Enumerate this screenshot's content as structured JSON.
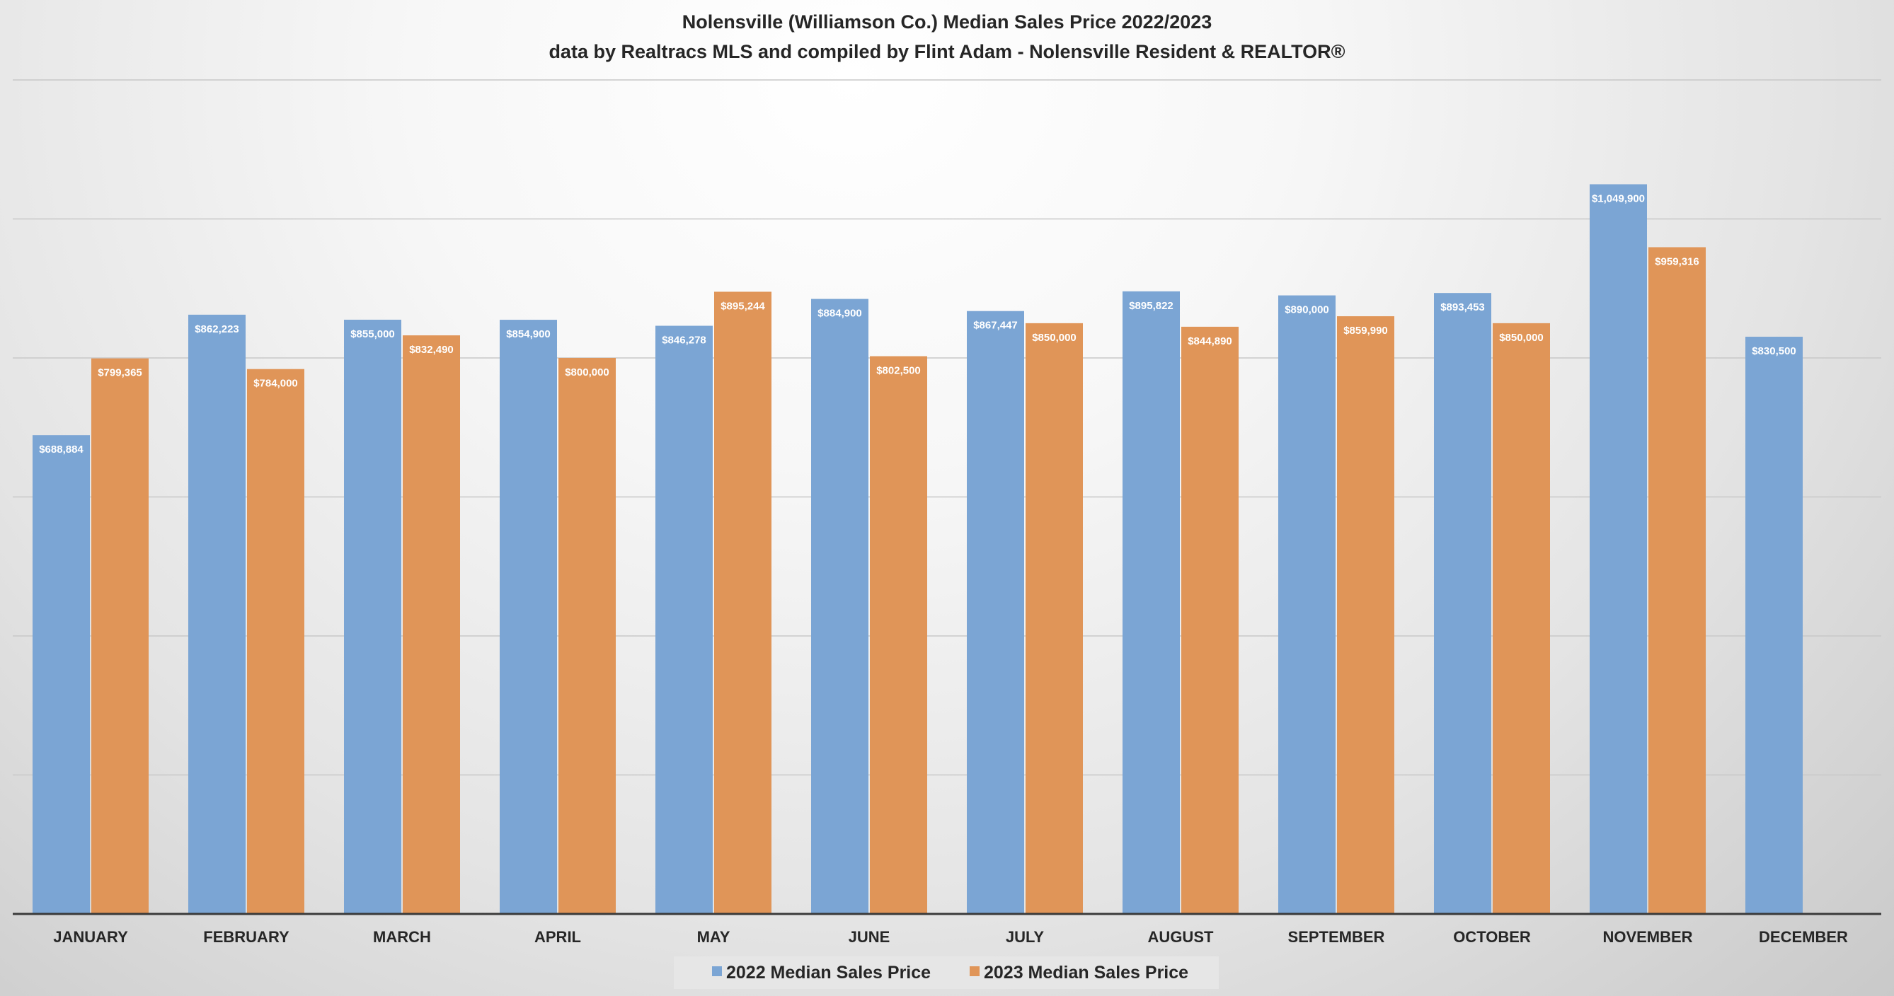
{
  "chart_data": {
    "type": "bar",
    "title": "Nolensville (Williamson Co.) Median Sales Price 2022/2023",
    "subtitle": "data by Realtracs MLS and compiled by Flint Adam - Nolensville Resident & REALTOR®",
    "xlabel": "",
    "ylabel": "",
    "ylim": [
      0,
      1200000
    ],
    "grid": true,
    "legend_position": "bottom",
    "categories": [
      "JANUARY",
      "FEBRUARY",
      "MARCH",
      "APRIL",
      "MAY",
      "JUNE",
      "JULY",
      "AUGUST",
      "SEPTEMBER",
      "OCTOBER",
      "NOVEMBER",
      "DECEMBER"
    ],
    "series": [
      {
        "name": "2022 Median Sales Price",
        "color": "#7ba5d4",
        "values": [
          688884,
          862223,
          855000,
          854900,
          846278,
          884900,
          867447,
          895822,
          890000,
          893453,
          1049900,
          830500
        ],
        "labels": [
          "$688,884",
          "$862,223",
          "$855,000",
          "$854,900",
          "$846,278",
          "$884,900",
          "$867,447",
          "$895,822",
          "$890,000",
          "$893,453",
          "$1,049,900",
          "$830,500"
        ]
      },
      {
        "name": "2023 Median Sales Price",
        "color": "#e09558",
        "values": [
          799365,
          784000,
          832490,
          800000,
          895244,
          802500,
          850000,
          844890,
          859990,
          850000,
          959316,
          null
        ],
        "labels": [
          "$799,365",
          "$784,000",
          "$832,490",
          "$800,000",
          "$895,244",
          "$802,500",
          "$850,000",
          "$844,890",
          "$859,990",
          "$850,000",
          "$959,316",
          ""
        ]
      }
    ]
  }
}
